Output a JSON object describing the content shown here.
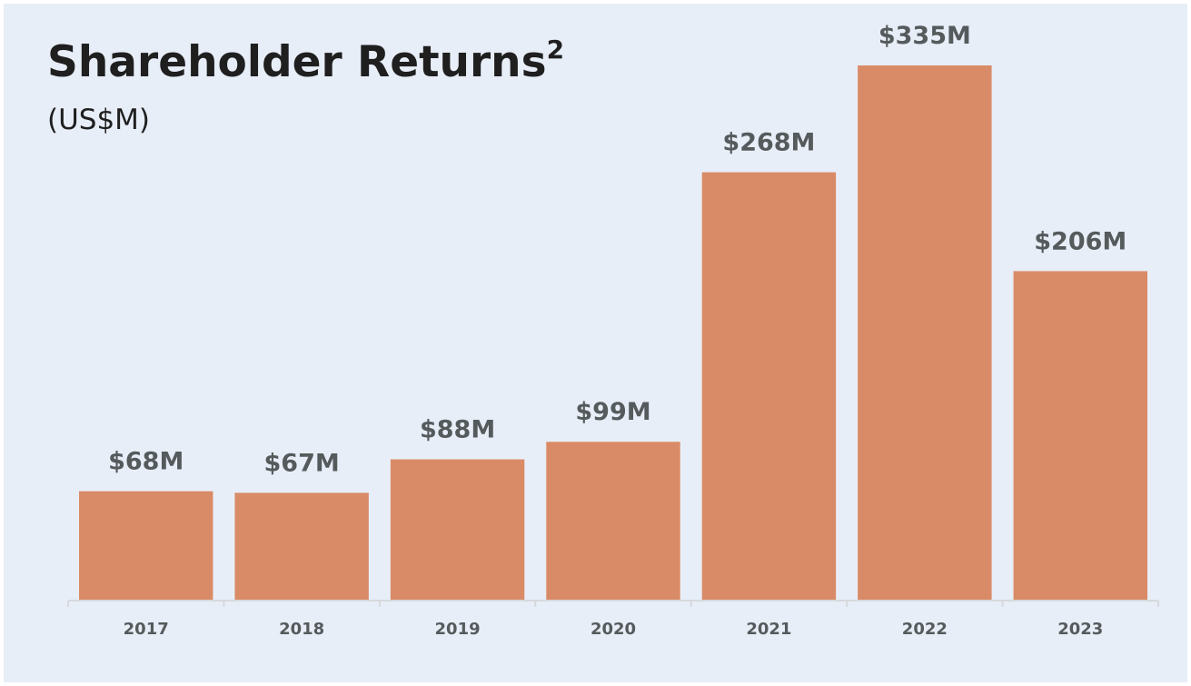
{
  "chart_data": {
    "type": "bar",
    "title": "Shareholder Returns",
    "title_superscript": "2",
    "subtitle": "(US$M)",
    "categories": [
      "2017",
      "2018",
      "2019",
      "2020",
      "2021",
      "2022",
      "2023"
    ],
    "values": [
      68,
      67,
      88,
      99,
      268,
      335,
      206
    ],
    "value_labels": [
      "$68M",
      "$67M",
      "$88M",
      "$99M",
      "$268M",
      "$335M",
      "$206M"
    ],
    "color": "#d98b67"
  }
}
